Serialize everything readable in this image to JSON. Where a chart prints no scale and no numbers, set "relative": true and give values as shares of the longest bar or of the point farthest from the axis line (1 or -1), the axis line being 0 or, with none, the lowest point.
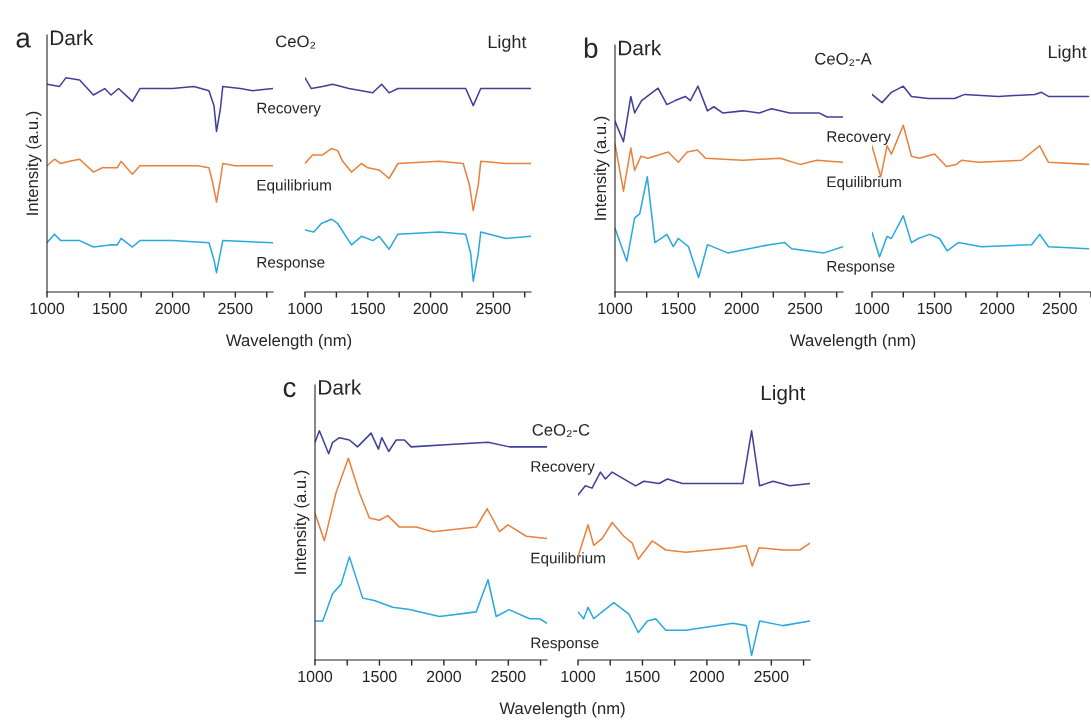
{
  "chart_data": [
    {
      "type": "line",
      "title": "CeO₂",
      "ylabel": "Intensity (a.u.)",
      "xlabel": "Wavelength (nm)",
      "annotations": [
        "a",
        "Dark"
      ],
      "relative": true,
      "tick_labels": "x",
      "xlim": [
        1000,
        2800
      ],
      "xticks": [
        1000,
        {
          "value": 1250,
          "label": null
        },
        1500,
        {
          "value": 1750,
          "label": null
        },
        2000,
        {
          "value": 2250,
          "label": null
        },
        2500,
        {
          "value": 2750,
          "label": null
        }
      ],
      "series": [
        {
          "name": "Recovery",
          "color": "#3f3f9c",
          "x": [
            1000,
            1100,
            1150,
            1260,
            1370,
            1460,
            1510,
            1570,
            1680,
            1740,
            2000,
            2170,
            2290,
            2330,
            2350,
            2380,
            2400,
            2540,
            2640,
            2800
          ],
          "values": [
            0.97,
            0.96,
            1.0,
            0.99,
            0.92,
            0.95,
            0.92,
            0.95,
            0.89,
            0.95,
            0.95,
            0.96,
            0.94,
            0.87,
            0.75,
            0.85,
            0.96,
            0.95,
            0.94,
            0.95
          ]
        },
        {
          "name": "Equilibrium",
          "color": "#e8823c",
          "x": [
            1000,
            1060,
            1110,
            1180,
            1260,
            1370,
            1440,
            1560,
            1590,
            1680,
            1740,
            2000,
            2200,
            2290,
            2320,
            2350,
            2380,
            2400,
            2500,
            2800
          ],
          "values": [
            0.59,
            0.62,
            0.6,
            0.61,
            0.62,
            0.56,
            0.58,
            0.58,
            0.61,
            0.55,
            0.59,
            0.59,
            0.59,
            0.58,
            0.51,
            0.42,
            0.52,
            0.6,
            0.59,
            0.59
          ]
        },
        {
          "name": "Response",
          "color": "#2aa9e0",
          "x": [
            1000,
            1060,
            1110,
            1200,
            1260,
            1370,
            1500,
            1560,
            1590,
            1680,
            1740,
            2000,
            2290,
            2330,
            2350,
            2380,
            2400,
            2800
          ],
          "values": [
            0.23,
            0.27,
            0.24,
            0.24,
            0.24,
            0.21,
            0.22,
            0.22,
            0.25,
            0.21,
            0.24,
            0.24,
            0.23,
            0.15,
            0.09,
            0.18,
            0.24,
            0.23
          ]
        }
      ]
    },
    {
      "type": "line",
      "annotations": [
        "Light"
      ],
      "relative": true,
      "tick_labels": "x",
      "xlim": [
        1000,
        2800
      ],
      "xticks": [
        1000,
        {
          "value": 1250,
          "label": null
        },
        1500,
        {
          "value": 1750,
          "label": null
        },
        2000,
        {
          "value": 2250,
          "label": null
        },
        2500,
        {
          "value": 2750,
          "label": null
        }
      ],
      "series": [
        {
          "color": "#3f3f9c",
          "x": [
            1000,
            1050,
            1140,
            1220,
            1350,
            1540,
            1610,
            1670,
            1740,
            2070,
            2280,
            2340,
            2400,
            2600,
            2800
          ],
          "values": [
            1.0,
            0.95,
            0.96,
            0.97,
            0.95,
            0.93,
            0.97,
            0.93,
            0.95,
            0.95,
            0.95,
            0.87,
            0.95,
            0.95,
            0.95
          ]
        },
        {
          "color": "#e8823c",
          "x": [
            1000,
            1060,
            1140,
            1210,
            1260,
            1300,
            1370,
            1450,
            1500,
            1590,
            1670,
            1740,
            2070,
            2260,
            2310,
            2340,
            2380,
            2400,
            2600,
            2800
          ],
          "values": [
            0.6,
            0.64,
            0.64,
            0.67,
            0.66,
            0.61,
            0.56,
            0.6,
            0.58,
            0.57,
            0.53,
            0.6,
            0.61,
            0.6,
            0.5,
            0.38,
            0.5,
            0.61,
            0.6,
            0.6
          ]
        },
        {
          "color": "#2aa9e0",
          "x": [
            1000,
            1070,
            1130,
            1210,
            1260,
            1370,
            1450,
            1540,
            1590,
            1670,
            1740,
            2070,
            2280,
            2320,
            2340,
            2380,
            2400,
            2600,
            2800
          ],
          "values": [
            0.29,
            0.28,
            0.32,
            0.34,
            0.32,
            0.22,
            0.26,
            0.24,
            0.26,
            0.2,
            0.27,
            0.28,
            0.27,
            0.18,
            0.05,
            0.18,
            0.28,
            0.25,
            0.26
          ]
        }
      ]
    },
    {
      "type": "line",
      "title": "CeO₂-A",
      "ylabel": "Intensity (a.u.)",
      "xlabel": "Wavelength (nm)",
      "annotations": [
        "b",
        "Dark"
      ],
      "relative": true,
      "tick_labels": "x",
      "xlim": [
        1000,
        2800
      ],
      "xticks": [
        1000,
        {
          "value": 1250,
          "label": null
        },
        1500,
        {
          "value": 1750,
          "label": null
        },
        2000,
        {
          "value": 2250,
          "label": null
        },
        2500,
        {
          "value": 2750,
          "label": null
        }
      ],
      "series": [
        {
          "name": "Recovery",
          "color": "#3f3f9c",
          "x": [
            1000,
            1067,
            1125,
            1155,
            1210,
            1340,
            1410,
            1475,
            1555,
            1595,
            1655,
            1730,
            1780,
            1850,
            2010,
            2140,
            2235,
            2380,
            2490,
            2610,
            2675,
            2800
          ],
          "values": [
            0.83,
            0.73,
            0.95,
            0.87,
            0.93,
            0.99,
            0.91,
            0.93,
            0.95,
            0.93,
            1.0,
            0.88,
            0.9,
            0.87,
            0.88,
            0.87,
            0.89,
            0.87,
            0.87,
            0.87,
            0.85,
            0.85
          ]
        },
        {
          "name": "Equilibrium",
          "color": "#e8823c",
          "x": [
            1000,
            1067,
            1125,
            1155,
            1205,
            1260,
            1420,
            1500,
            1570,
            1650,
            1715,
            2010,
            2305,
            2460,
            2595,
            2800
          ],
          "values": [
            0.72,
            0.49,
            0.7,
            0.59,
            0.66,
            0.65,
            0.68,
            0.63,
            0.68,
            0.69,
            0.65,
            0.64,
            0.65,
            0.62,
            0.64,
            0.63
          ]
        },
        {
          "name": "Response",
          "color": "#2aa9e0",
          "x": [
            1000,
            1093,
            1155,
            1195,
            1255,
            1315,
            1410,
            1460,
            1500,
            1580,
            1660,
            1730,
            1890,
            2220,
            2340,
            2395,
            2650,
            2800
          ],
          "values": [
            0.31,
            0.15,
            0.36,
            0.38,
            0.56,
            0.24,
            0.28,
            0.22,
            0.26,
            0.22,
            0.07,
            0.23,
            0.19,
            0.23,
            0.24,
            0.21,
            0.19,
            0.22
          ]
        }
      ]
    },
    {
      "type": "line",
      "annotations": [
        "Light"
      ],
      "relative": true,
      "tick_labels": "x",
      "xlim": [
        1000,
        2750
      ],
      "xticks": [
        1000,
        {
          "value": 1250,
          "label": null
        },
        1500,
        {
          "value": 1750,
          "label": null
        },
        2000,
        {
          "value": 2250,
          "label": null
        },
        2500,
        {
          "value": 2750,
          "label": null
        }
      ],
      "series": [
        {
          "color": "#3f3f9c",
          "x": [
            1000,
            1080,
            1155,
            1250,
            1315,
            1450,
            1660,
            1740,
            2010,
            2300,
            2355,
            2410,
            2730
          ],
          "values": [
            0.96,
            0.92,
            0.97,
            1.0,
            0.95,
            0.94,
            0.94,
            0.96,
            0.95,
            0.96,
            0.97,
            0.95,
            0.95
          ]
        },
        {
          "color": "#e8823c",
          "x": [
            1000,
            1070,
            1120,
            1155,
            1250,
            1315,
            1380,
            1500,
            1595,
            1675,
            1715,
            1850,
            2195,
            2340,
            2410,
            2730
          ],
          "values": [
            0.71,
            0.56,
            0.71,
            0.67,
            0.81,
            0.66,
            0.65,
            0.67,
            0.61,
            0.62,
            0.64,
            0.63,
            0.64,
            0.71,
            0.63,
            0.62
          ]
        },
        {
          "color": "#2aa9e0",
          "x": [
            1000,
            1060,
            1120,
            1155,
            1250,
            1315,
            1370,
            1460,
            1540,
            1600,
            1690,
            1875,
            2275,
            2340,
            2410,
            2730
          ],
          "values": [
            0.29,
            0.17,
            0.27,
            0.26,
            0.37,
            0.24,
            0.26,
            0.28,
            0.26,
            0.2,
            0.24,
            0.22,
            0.23,
            0.28,
            0.22,
            0.21
          ]
        }
      ]
    },
    {
      "type": "line",
      "title": "CeO₂-C",
      "ylabel": "Intensity (a.u.)",
      "xlabel": "Wavelength (nm)",
      "annotations": [
        "c",
        "Dark"
      ],
      "relative": true,
      "tick_labels": "x",
      "xlim": [
        1000,
        2800
      ],
      "xticks": [
        1000,
        {
          "value": 1250,
          "label": null
        },
        1500,
        {
          "value": 1750,
          "label": null
        },
        2000,
        {
          "value": 2250,
          "label": null
        },
        2500,
        {
          "value": 2750,
          "label": null
        }
      ],
      "series": [
        {
          "name": "Recovery",
          "color": "#3f3f9c",
          "x": [
            1000,
            1034,
            1106,
            1137,
            1190,
            1267,
            1330,
            1435,
            1492,
            1518,
            1572,
            1630,
            1694,
            1746,
            2044,
            2342,
            2510,
            2800
          ],
          "values": [
            0.95,
            1.0,
            0.9,
            0.95,
            0.97,
            0.96,
            0.93,
            0.99,
            0.92,
            0.97,
            0.91,
            0.96,
            0.96,
            0.93,
            0.94,
            0.95,
            0.93,
            0.93
          ]
        },
        {
          "name": "Equilibrium",
          "color": "#e8823c",
          "x": [
            1000,
            1073,
            1163,
            1259,
            1344,
            1422,
            1500,
            1565,
            1655,
            1785,
            1914,
            2251,
            2336,
            2432,
            2497,
            2640,
            2800
          ],
          "values": [
            0.64,
            0.52,
            0.73,
            0.88,
            0.73,
            0.62,
            0.61,
            0.63,
            0.58,
            0.58,
            0.56,
            0.58,
            0.66,
            0.56,
            0.59,
            0.54,
            0.53
          ]
        },
        {
          "name": "Response",
          "color": "#2aa9e0",
          "x": [
            1000,
            1060,
            1137,
            1202,
            1267,
            1370,
            1461,
            1603,
            1733,
            1966,
            2251,
            2342,
            2406,
            2505,
            2665,
            2743,
            2800
          ],
          "values": [
            0.17,
            0.17,
            0.29,
            0.33,
            0.45,
            0.27,
            0.26,
            0.23,
            0.22,
            0.19,
            0.21,
            0.35,
            0.19,
            0.22,
            0.18,
            0.18,
            0.16
          ]
        }
      ]
    },
    {
      "type": "line",
      "annotations": [
        "Light"
      ],
      "relative": true,
      "tick_labels": "x",
      "xlim": [
        1000,
        2800
      ],
      "xticks": [
        1000,
        {
          "value": 1250,
          "label": null
        },
        1500,
        {
          "value": 1750,
          "label": null
        },
        2000,
        {
          "value": 2250,
          "label": null
        },
        2500,
        {
          "value": 2750,
          "label": null
        }
      ],
      "series": [
        {
          "color": "#3f3f9c",
          "x": [
            1000,
            1057,
            1109,
            1174,
            1213,
            1265,
            1447,
            1512,
            1629,
            1694,
            1811,
            2071,
            2279,
            2347,
            2409,
            2513,
            2643,
            2800
          ],
          "values": [
            0.72,
            0.76,
            0.75,
            0.82,
            0.79,
            0.82,
            0.76,
            0.78,
            0.77,
            0.79,
            0.77,
            0.77,
            0.77,
            1.0,
            0.76,
            0.78,
            0.76,
            0.77
          ]
        },
        {
          "color": "#e8823c",
          "x": [
            1000,
            1078,
            1122,
            1187,
            1265,
            1356,
            1421,
            1468,
            1577,
            1681,
            1837,
            2201,
            2305,
            2352,
            2404,
            2591,
            2721,
            2800
          ],
          "values": [
            0.45,
            0.59,
            0.5,
            0.53,
            0.6,
            0.54,
            0.51,
            0.44,
            0.52,
            0.48,
            0.47,
            0.49,
            0.5,
            0.41,
            0.49,
            0.48,
            0.48,
            0.51
          ]
        },
        {
          "color": "#2aa9e0",
          "x": [
            1000,
            1044,
            1078,
            1122,
            1187,
            1278,
            1395,
            1468,
            1538,
            1603,
            1681,
            1837,
            2201,
            2305,
            2347,
            2409,
            2591,
            2800
          ],
          "values": [
            0.21,
            0.18,
            0.23,
            0.18,
            0.21,
            0.25,
            0.2,
            0.12,
            0.17,
            0.18,
            0.13,
            0.13,
            0.16,
            0.15,
            0.02,
            0.17,
            0.15,
            0.17
          ]
        }
      ]
    }
  ]
}
